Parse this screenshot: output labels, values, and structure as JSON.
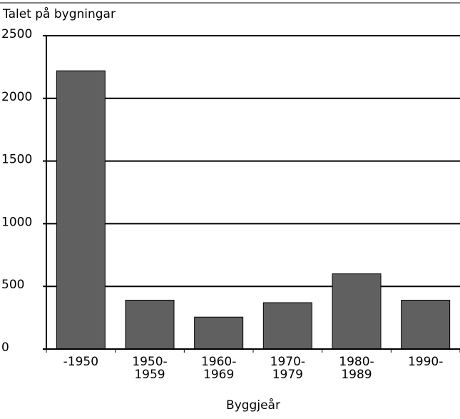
{
  "chart_data": {
    "type": "bar",
    "y_label": "Talet på bygningar",
    "x_label": "Byggjeår",
    "categories": [
      "-1950",
      "1950-\n1959",
      "1960-\n1969",
      "1970-\n1979",
      "1980-\n1989",
      "1990-"
    ],
    "values": [
      2220,
      390,
      255,
      370,
      600,
      390
    ],
    "color": "#606060",
    "ylim": [
      0,
      2500
    ],
    "yticks": [
      0,
      500,
      1000,
      1500,
      2000,
      2500
    ],
    "grid": true
  }
}
